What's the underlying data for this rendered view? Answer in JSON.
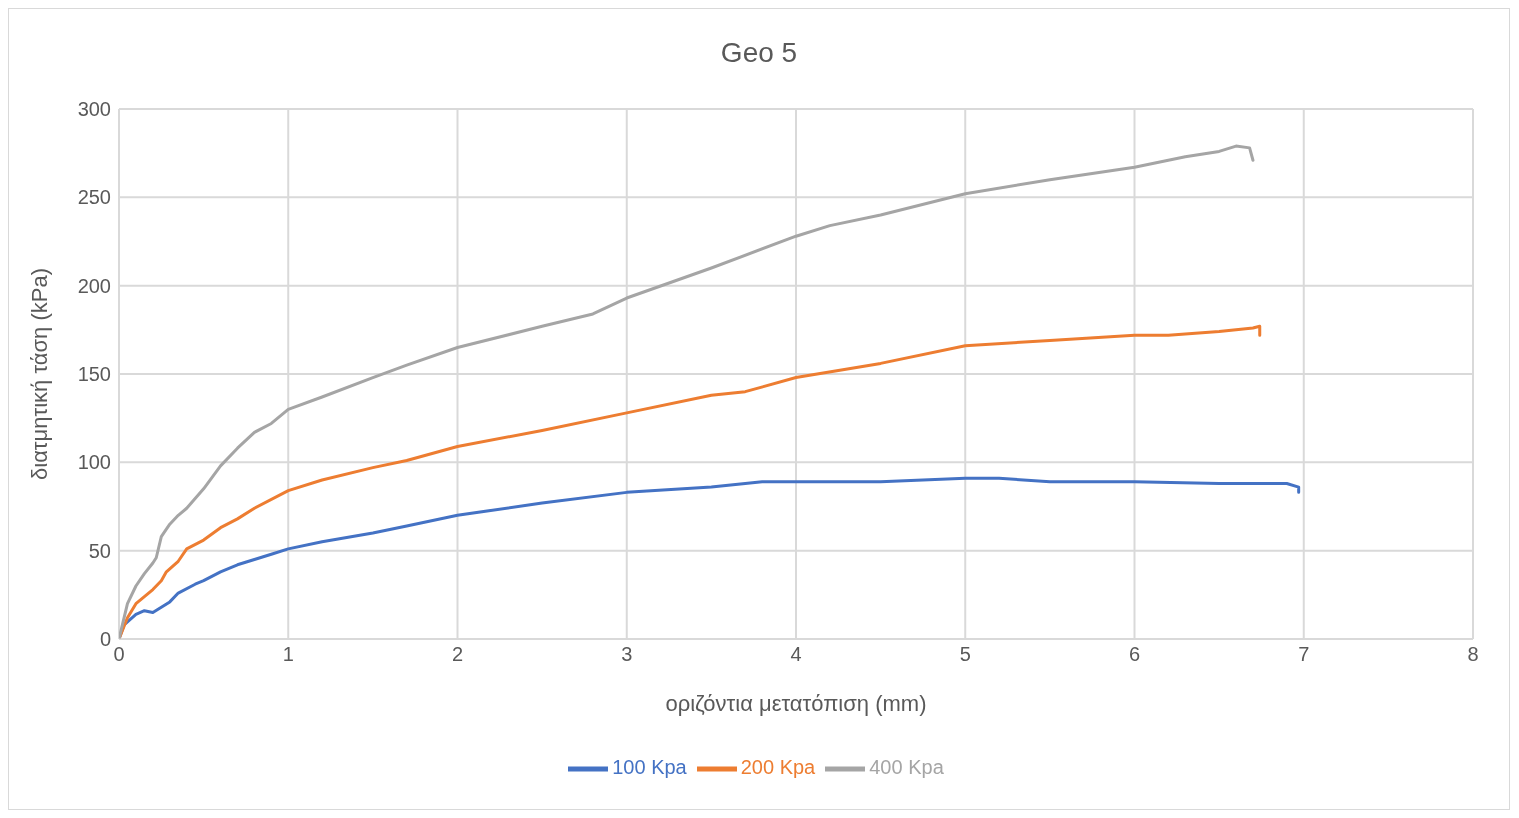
{
  "chart_data": {
    "type": "line",
    "title": "Geo 5",
    "xlabel": "οριζόντια μετατόπιση (mm)",
    "ylabel": "διατμητική τάση (kPa)",
    "xlim": [
      0,
      8
    ],
    "xticks": [
      0,
      1,
      2,
      3,
      4,
      5,
      6,
      7,
      8
    ],
    "ylim": [
      0,
      300
    ],
    "yticks": [
      0,
      50,
      100,
      150,
      200,
      250,
      300
    ],
    "grid": true,
    "legend": "bottom",
    "marker": "none",
    "series": [
      {
        "name": "100 Kpa",
        "color": "#4472c4",
        "x": [
          0,
          0.03,
          0.1,
          0.15,
          0.2,
          0.25,
          0.3,
          0.35,
          0.45,
          0.5,
          0.6,
          0.7,
          0.8,
          0.9,
          1,
          1.2,
          1.5,
          1.7,
          2,
          2.5,
          3,
          3.5,
          3.8,
          4,
          4.5,
          5,
          5.2,
          5.5,
          6,
          6.5,
          6.9,
          6.97,
          6.97
        ],
        "values": [
          0,
          8,
          14,
          16,
          15,
          18,
          21,
          26,
          31,
          33,
          38,
          42,
          45,
          48,
          51,
          55,
          60,
          64,
          70,
          77,
          83,
          86,
          89,
          89,
          89,
          91,
          91,
          89,
          89,
          88,
          88,
          86,
          83
        ]
      },
      {
        "name": "200 Kpa",
        "color": "#ed7d31",
        "x": [
          0,
          0.05,
          0.1,
          0.15,
          0.2,
          0.25,
          0.28,
          0.35,
          0.4,
          0.5,
          0.6,
          0.7,
          0.8,
          1,
          1.2,
          1.5,
          1.7,
          2,
          2.5,
          3,
          3.5,
          3.7,
          4,
          4.5,
          5,
          5.5,
          6,
          6.2,
          6.5,
          6.7,
          6.74,
          6.74
        ],
        "values": [
          0,
          12,
          20,
          24,
          28,
          33,
          38,
          44,
          51,
          56,
          63,
          68,
          74,
          84,
          90,
          97,
          101,
          109,
          118,
          128,
          138,
          140,
          148,
          156,
          166,
          169,
          172,
          172,
          174,
          176,
          177,
          172
        ]
      },
      {
        "name": "400 Kpa",
        "color": "#a5a5a5",
        "x": [
          0,
          0.05,
          0.1,
          0.15,
          0.2,
          0.22,
          0.25,
          0.3,
          0.35,
          0.4,
          0.5,
          0.6,
          0.7,
          0.8,
          0.9,
          1,
          1.2,
          1.5,
          1.7,
          2,
          2.5,
          2.8,
          3,
          3.5,
          4,
          4.2,
          4.5,
          5,
          5.5,
          6,
          6.3,
          6.5,
          6.6,
          6.68,
          6.7
        ],
        "values": [
          0,
          20,
          30,
          37,
          43,
          46,
          58,
          65,
          70,
          74,
          85,
          98,
          108,
          117,
          122,
          130,
          137,
          148,
          155,
          165,
          177,
          184,
          193,
          210,
          228,
          234,
          240,
          252,
          260,
          267,
          273,
          276,
          279,
          278,
          271
        ]
      }
    ]
  }
}
